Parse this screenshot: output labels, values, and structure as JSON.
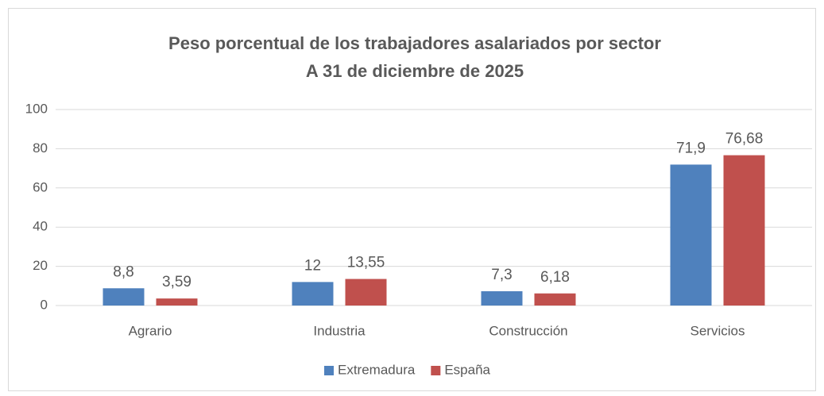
{
  "chart_data": {
    "type": "bar",
    "title": "Peso porcentual de los trabajadores asalariados por sector",
    "subtitle": "A 31 de diciembre de 2025",
    "categories": [
      "Agrario",
      "Industria",
      "Construcción",
      "Servicios"
    ],
    "series": [
      {
        "name": "Extremadura",
        "color": "#4f81bd",
        "values": [
          8.8,
          12,
          7.3,
          71.9
        ],
        "value_labels": [
          "8,8",
          "12",
          "7,3",
          "71,9"
        ]
      },
      {
        "name": "España",
        "color": "#c0504d",
        "values": [
          3.59,
          13.55,
          6.18,
          76.68
        ],
        "value_labels": [
          "3,59",
          "13,55",
          "6,18",
          "76,68"
        ]
      }
    ],
    "ylim": [
      0,
      100
    ],
    "yticks": [
      0,
      20,
      40,
      60,
      80,
      100
    ],
    "grid": true,
    "legend": "bottom"
  }
}
